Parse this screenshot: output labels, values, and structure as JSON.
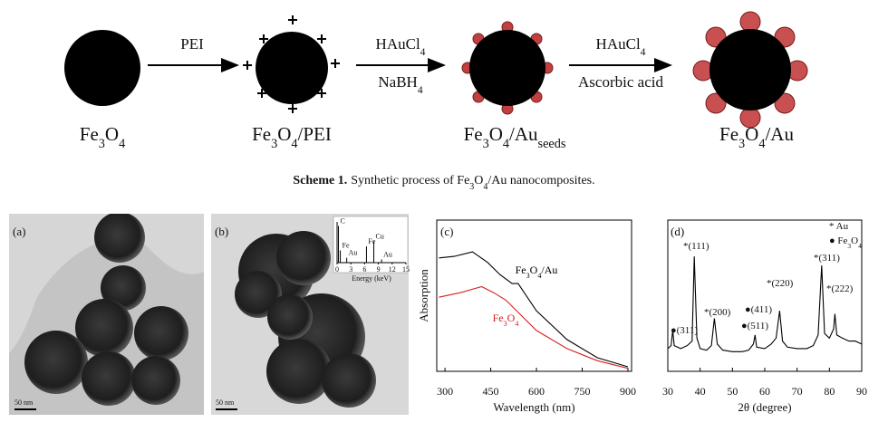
{
  "scheme": {
    "stages": [
      [
        "Fe",
        "3",
        "O",
        "4"
      ],
      [
        "Fe",
        "3",
        "O",
        "4",
        "/PEI"
      ],
      [
        "Fe",
        "3",
        "O",
        "4",
        "/Au",
        "seeds"
      ],
      [
        "Fe",
        "3",
        "O",
        "4",
        "/Au"
      ]
    ],
    "steps": [
      {
        "above": [
          "PEI"
        ]
      },
      {
        "above": [
          "HAuCl",
          "4"
        ],
        "below": [
          "NaBH",
          "4"
        ]
      },
      {
        "above": [
          "HAuCl",
          "4"
        ],
        "below": [
          "Ascorbic acid"
        ]
      }
    ],
    "caption": {
      "label": "Scheme 1.",
      "text": [
        "Synthetic process of Fe",
        "3",
        "O",
        "4",
        "/Au nanocomposites."
      ]
    }
  },
  "figure": {
    "panels": [
      {
        "label": "(a)",
        "scale_bar": "50 nm"
      },
      {
        "label": "(b)",
        "scale_bar": "50 nm",
        "inset": {
          "type": "bar",
          "xlabel": "Energy (keV)",
          "xlim": [
            0,
            15
          ],
          "xticks": [
            0,
            3,
            6,
            9,
            12,
            15
          ],
          "ylim": [
            0,
            100
          ],
          "peaks": [
            {
              "label": "C",
              "x": 0.3,
              "value": 90
            },
            {
              "label": "Fe",
              "x": 0.7,
              "value": 30
            },
            {
              "label": "Au",
              "x": 2.1,
              "value": 12
            },
            {
              "label": "Fe",
              "x": 6.4,
              "value": 40
            },
            {
              "label": "Cu",
              "x": 8.0,
              "value": 52
            },
            {
              "label": "Au",
              "x": 9.7,
              "value": 8
            }
          ]
        }
      },
      {
        "label": "(c)",
        "type": "line",
        "xlabel": "Wavelength (nm)",
        "ylabel": "Absorption",
        "xlim": [
          273,
          912
        ],
        "xticks": [
          300,
          450,
          600,
          750,
          900
        ],
        "ylim": [
          0,
          100
        ],
        "series": [
          {
            "name": [
              "Fe",
              "3",
              "O",
              "4",
              "/Au"
            ],
            "color": "#000000",
            "x": [
              280,
              330,
              390,
              440,
              480,
              520,
              540,
              600,
              700,
              800,
              900
            ],
            "values": [
              75,
              76,
              79,
              72,
              64,
              58,
              58,
              40,
              21,
              9,
              3
            ]
          },
          {
            "name": [
              "Fe",
              "3",
              "O",
              "4"
            ],
            "color": "#d42020",
            "x": [
              280,
              350,
              420,
              460,
              500,
              600,
              700,
              800,
              900
            ],
            "values": [
              49,
              52,
              56,
              52,
              47,
              27,
              15,
              7,
              2
            ]
          }
        ]
      },
      {
        "label": "(d)",
        "type": "line",
        "xlabel": "2θ (degree)",
        "xlim": [
          30,
          90
        ],
        "xticks": [
          30,
          40,
          50,
          60,
          70,
          80,
          90
        ],
        "ylim": [
          0,
          100
        ],
        "legend": [
          [
            "* Au"
          ],
          [
            "● Fe",
            "3",
            "O",
            "4"
          ]
        ],
        "series": [
          {
            "color": "#000000",
            "x": [
              30,
              31,
              31.5,
              32,
              34,
              36,
              37.5,
              38.2,
              39,
              40,
              42,
              43.5,
              44.4,
              45.3,
              47,
              50,
              53,
              55,
              56.5,
              57,
              57.5,
              60,
              62,
              63.5,
              64.6,
              65.5,
              67,
              70,
              73,
              75,
              76.5,
              77.6,
              78.5,
              80,
              81.3,
              81.7,
              82.3,
              84,
              86,
              88,
              90
            ],
            "values": [
              15,
              17,
              27,
              17,
              15,
              17,
              20,
              76,
              22,
              15,
              14,
              17,
              35,
              18,
              14,
              13,
              13,
              14,
              18,
              24,
              16,
              15,
              18,
              22,
              40,
              20,
              16,
              15,
              15,
              17,
              24,
              70,
              25,
              22,
              28,
              38,
              24,
              22,
              20,
              20,
              18
            ]
          }
        ],
        "annotations": [
          "*(111)",
          "*(200)",
          "*(220)",
          "*(311)",
          "*(222)",
          "●(311)",
          "●(511)",
          "●(411)"
        ]
      }
    ]
  }
}
